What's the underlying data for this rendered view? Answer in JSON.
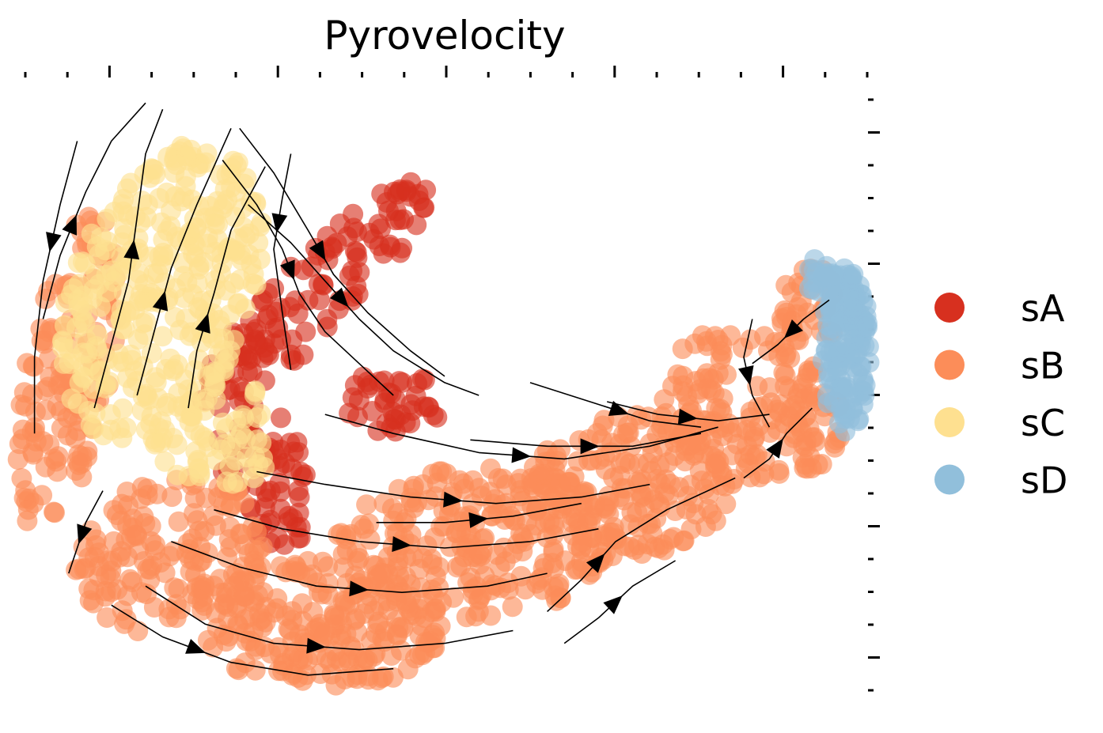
{
  "chart_data": {
    "type": "scatter",
    "subtype": "embedding-with-velocity-streamlines",
    "title": "Pyrovelocity",
    "xlabel": "",
    "ylabel": "",
    "xlim": [
      0,
      100
    ],
    "ylim": [
      0,
      100
    ],
    "grid": false,
    "legend_position": "right",
    "legend": [
      {
        "label": "sA",
        "color": "#d7301f"
      },
      {
        "label": "sB",
        "color": "#fc8d59"
      },
      {
        "label": "sC",
        "color": "#fee090"
      },
      {
        "label": "sD",
        "color": "#91bfdb"
      }
    ],
    "series": [
      {
        "name": "sA",
        "color": "#d7301f",
        "regions": [
          {
            "shape": "ellipse",
            "cx": 35,
            "cy": 66,
            "rx": 5,
            "ry": 22,
            "rot": -36,
            "n": 130
          },
          {
            "shape": "ellipse",
            "cx": 29,
            "cy": 38,
            "rx": 5,
            "ry": 13,
            "rot": 15,
            "n": 70
          },
          {
            "shape": "ellipse",
            "cx": 44,
            "cy": 49,
            "rx": 6,
            "ry": 5,
            "rot": 0,
            "n": 40
          }
        ]
      },
      {
        "name": "sB",
        "color": "#fc8d59",
        "regions": [
          {
            "shape": "ellipse",
            "cx": 6,
            "cy": 54,
            "rx": 5,
            "ry": 26,
            "rot": -8,
            "n": 140
          },
          {
            "shape": "ellipse",
            "cx": 18,
            "cy": 25,
            "rx": 11,
            "ry": 13,
            "rot": -25,
            "n": 160
          },
          {
            "shape": "ellipse",
            "cx": 36,
            "cy": 14,
            "rx": 15,
            "ry": 10,
            "rot": 0,
            "n": 220
          },
          {
            "shape": "ellipse",
            "cx": 54,
            "cy": 27,
            "rx": 17,
            "ry": 12,
            "rot": 10,
            "n": 260
          },
          {
            "shape": "ellipse",
            "cx": 72,
            "cy": 36,
            "rx": 12,
            "ry": 11,
            "rot": 15,
            "n": 180
          },
          {
            "shape": "ellipse",
            "cx": 86,
            "cy": 48,
            "rx": 10,
            "ry": 13,
            "rot": 25,
            "n": 170
          },
          {
            "shape": "ellipse",
            "cx": 93,
            "cy": 64,
            "rx": 4,
            "ry": 6,
            "rot": 0,
            "n": 40
          }
        ]
      },
      {
        "name": "sC",
        "color": "#fee090",
        "regions": [
          {
            "shape": "ellipse",
            "cx": 17,
            "cy": 66,
            "rx": 11,
            "ry": 24,
            "rot": -12,
            "n": 330
          },
          {
            "shape": "ellipse",
            "cx": 23,
            "cy": 44,
            "rx": 7,
            "ry": 10,
            "rot": 0,
            "n": 70
          }
        ]
      },
      {
        "name": "sD",
        "color": "#91bfdb",
        "regions": [
          {
            "shape": "ellipse",
            "cx": 97,
            "cy": 57,
            "rx": 2.8,
            "ry": 13,
            "rot": 0,
            "n": 140
          },
          {
            "shape": "ellipse",
            "cx": 94,
            "cy": 69,
            "rx": 2,
            "ry": 3,
            "rot": 0,
            "n": 20
          }
        ]
      }
    ],
    "streamline_paths": [
      [
        [
          3,
          62
        ],
        [
          5,
          72
        ],
        [
          8,
          82
        ],
        [
          11,
          90
        ],
        [
          15,
          96
        ]
      ],
      [
        [
          9,
          48
        ],
        [
          11,
          58
        ],
        [
          13,
          68
        ],
        [
          14,
          78
        ],
        [
          15,
          88
        ],
        [
          17,
          95
        ]
      ],
      [
        [
          14,
          50
        ],
        [
          16,
          60
        ],
        [
          18,
          70
        ],
        [
          21,
          80
        ],
        [
          25,
          92
        ]
      ],
      [
        [
          20,
          48
        ],
        [
          21,
          57
        ],
        [
          23,
          66
        ],
        [
          25,
          76
        ],
        [
          29,
          86
        ]
      ],
      [
        [
          32,
          88
        ],
        [
          31,
          81
        ],
        [
          30,
          73
        ],
        [
          31,
          63
        ],
        [
          32,
          54
        ]
      ],
      [
        [
          7,
          90
        ],
        [
          5,
          80
        ],
        [
          3,
          68
        ],
        [
          2,
          56
        ],
        [
          2,
          44
        ]
      ],
      [
        [
          10,
          35
        ],
        [
          8,
          30
        ],
        [
          7,
          26
        ],
        [
          6,
          22
        ]
      ],
      [
        [
          11,
          17
        ],
        [
          17,
          12
        ],
        [
          25,
          8
        ],
        [
          34,
          6
        ],
        [
          44,
          7
        ]
      ],
      [
        [
          15,
          20
        ],
        [
          22,
          14
        ],
        [
          30,
          11
        ],
        [
          40,
          10
        ],
        [
          50,
          11
        ],
        [
          58,
          13
        ]
      ],
      [
        [
          18,
          27
        ],
        [
          26,
          23
        ],
        [
          35,
          20
        ],
        [
          45,
          19
        ],
        [
          55,
          20
        ],
        [
          62,
          22
        ]
      ],
      [
        [
          23,
          32
        ],
        [
          31,
          29
        ],
        [
          40,
          27
        ],
        [
          50,
          26
        ],
        [
          60,
          27
        ],
        [
          68,
          29
        ]
      ],
      [
        [
          28,
          38
        ],
        [
          36,
          36
        ],
        [
          46,
          34
        ],
        [
          56,
          33
        ],
        [
          66,
          34
        ],
        [
          74,
          36
        ]
      ],
      [
        [
          36,
          47
        ],
        [
          44,
          44
        ],
        [
          54,
          41
        ],
        [
          64,
          40
        ],
        [
          74,
          42
        ],
        [
          82,
          45
        ]
      ],
      [
        [
          53,
          43
        ],
        [
          62,
          42
        ],
        [
          72,
          42
        ],
        [
          80,
          44
        ]
      ],
      [
        [
          60,
          52
        ],
        [
          67,
          49
        ],
        [
          74,
          46
        ],
        [
          80,
          45
        ]
      ],
      [
        [
          69,
          49
        ],
        [
          75,
          47
        ],
        [
          82,
          46
        ],
        [
          88,
          47
        ]
      ],
      [
        [
          95,
          65
        ],
        [
          92,
          62
        ],
        [
          89,
          58
        ],
        [
          86,
          55
        ]
      ],
      [
        [
          85,
          37
        ],
        [
          88,
          40
        ],
        [
          90,
          44
        ],
        [
          93,
          48
        ]
      ],
      [
        [
          62,
          16
        ],
        [
          66,
          21
        ],
        [
          70,
          27
        ],
        [
          76,
          32
        ],
        [
          84,
          37
        ]
      ],
      [
        [
          64,
          11
        ],
        [
          68,
          15
        ],
        [
          72,
          20
        ],
        [
          77,
          24
        ]
      ],
      [
        [
          24,
          87
        ],
        [
          28,
          80
        ],
        [
          31,
          73
        ],
        [
          33,
          66
        ],
        [
          36,
          60
        ],
        [
          40,
          55
        ],
        [
          44,
          50
        ]
      ],
      [
        [
          26,
          92
        ],
        [
          30,
          85
        ],
        [
          34,
          76
        ],
        [
          37,
          69
        ],
        [
          41,
          63
        ],
        [
          46,
          57
        ],
        [
          50,
          53
        ]
      ],
      [
        [
          27,
          80
        ],
        [
          32,
          74
        ],
        [
          36,
          68
        ],
        [
          40,
          62
        ],
        [
          44,
          57
        ],
        [
          50,
          52
        ],
        [
          54,
          50
        ]
      ],
      [
        [
          86,
          62
        ],
        [
          85,
          56
        ],
        [
          86,
          50
        ],
        [
          88,
          45
        ]
      ],
      [
        [
          42,
          30
        ],
        [
          50,
          30
        ],
        [
          58,
          31
        ],
        [
          66,
          33
        ]
      ]
    ]
  }
}
